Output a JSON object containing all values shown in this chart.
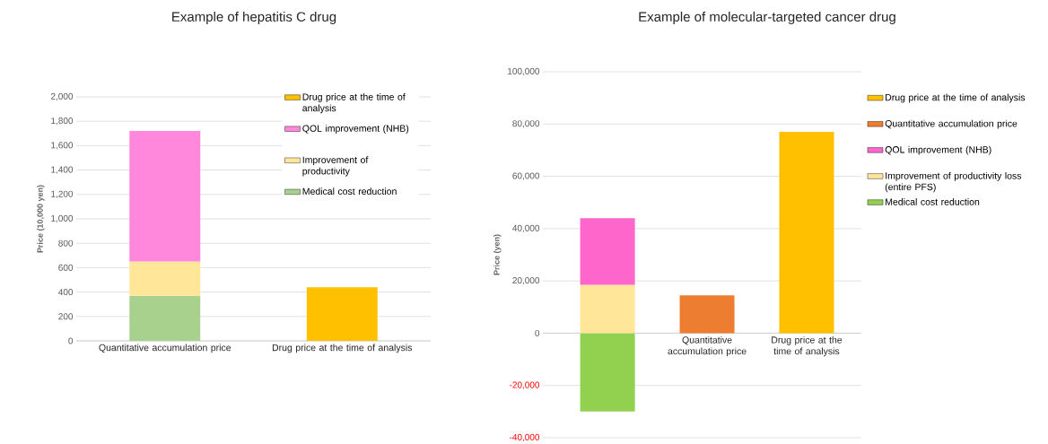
{
  "chart_data": [
    {
      "type": "bar",
      "title": "Example of hepatitis C drug",
      "ylabel": "Price (10,000 yen)",
      "stacked": true,
      "grid": "y",
      "legend": "right",
      "categories": [
        "Quantitative accumulation price",
        "Drug price at the time of analysis"
      ],
      "series": [
        {
          "name": "Medical cost reduction",
          "color": "#a9d18e",
          "values": [
            370,
            null
          ]
        },
        {
          "name": "Improvement of productivity",
          "color": "#ffe699",
          "values": [
            280,
            null
          ]
        },
        {
          "name": "QOL improvement (NHB)",
          "color": "#ff88dd",
          "values": [
            1070,
            null
          ]
        },
        {
          "name": "Drug price at the time of analysis",
          "color": "#ffc000",
          "values": [
            null,
            440
          ]
        }
      ],
      "ylim": [
        0,
        2000
      ],
      "yticks": [
        0,
        200,
        400,
        600,
        800,
        {
          "value": 1000,
          "label": "1,000"
        },
        {
          "value": 1200,
          "label": "1,200"
        },
        {
          "value": 1400,
          "label": "1,400"
        },
        {
          "value": 1600,
          "label": "1,600"
        },
        {
          "value": 1800,
          "label": "1,800"
        },
        {
          "value": 2000,
          "label": "2,000"
        }
      ]
    },
    {
      "type": "bar",
      "title": "Example of molecular-targeted cancer drug",
      "ylabel": "Price (yen)",
      "stacked": true,
      "grid": "y",
      "legend": "right",
      "categories": [
        null,
        "Quantitative accumulation price",
        "Drug price at the time of analysis"
      ],
      "series": [
        {
          "name": "Medical cost reduction",
          "color": "#92d050",
          "values": [
            -30000,
            null,
            null
          ]
        },
        {
          "name": "Improvement of productivity loss (entire PFS)",
          "color": "#ffe699",
          "values": [
            18500,
            null,
            null
          ]
        },
        {
          "name": "QOL improvement (NHB)",
          "color": "#ff66cc",
          "values": [
            25500,
            null,
            null
          ]
        },
        {
          "name": "Quantitative accumulation price",
          "color": "#ed7d31",
          "values": [
            null,
            14500,
            null
          ]
        },
        {
          "name": "Drug price at the time of analysis",
          "color": "#ffc000",
          "values": [
            null,
            null,
            77000
          ]
        }
      ],
      "ylim": [
        -40000,
        100000
      ],
      "yticks": [
        {
          "value": -40000,
          "label": "-40,000"
        },
        {
          "value": -20000,
          "label": "-20,000"
        },
        0,
        {
          "value": 20000,
          "label": "20,000"
        },
        {
          "value": 40000,
          "label": "40,000"
        },
        {
          "value": 60000,
          "label": "60,000"
        },
        {
          "value": 80000,
          "label": "80,000"
        },
        {
          "value": 100000,
          "label": "100,000"
        }
      ]
    }
  ]
}
